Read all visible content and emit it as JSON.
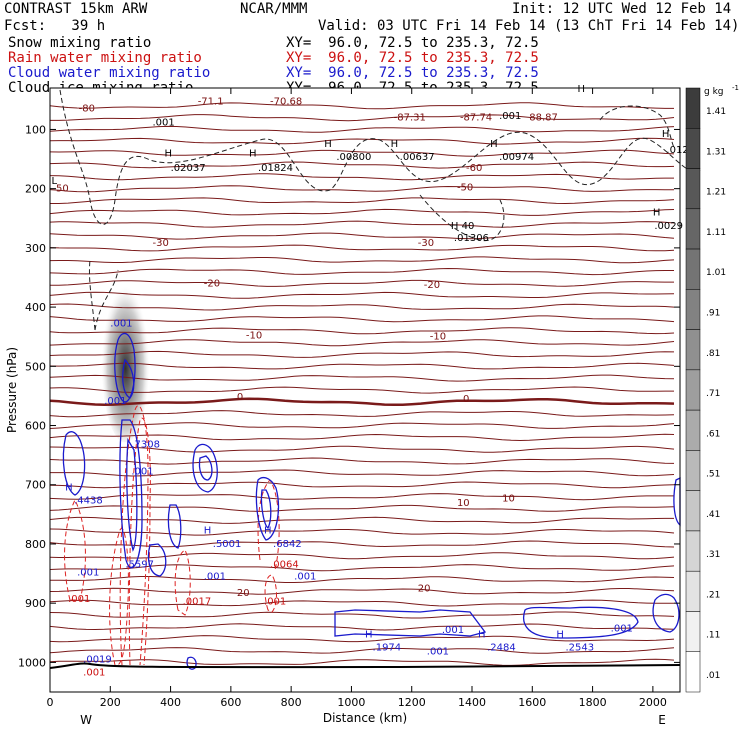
{
  "header": {
    "model": "CONTRAST 15km ARW",
    "org": "NCAR/MMM",
    "init": "Init: 12 UTC Wed 12 Feb 14",
    "fcst": "Fcst:   39 h",
    "valid": "Valid: 03 UTC Fri 14 Feb 14 (13 ChT Fri 14 Feb 14)"
  },
  "legend": [
    {
      "name": "Snow mixing ratio",
      "xy": "XY=  96.0, 72.5 to 235.3, 72.5",
      "color": "#000000"
    },
    {
      "name": "Rain water mixing ratio",
      "xy": "XY=  96.0, 72.5 to 235.3, 72.5",
      "color": "#cc1111"
    },
    {
      "name": "Cloud water mixing ratio",
      "xy": "XY=  96.0, 72.5 to 235.3, 72.5",
      "color": "#1a1acc"
    },
    {
      "name": "Cloud ice mixing ratio",
      "xy": "XY=  96.0, 72.5 to 235.3, 72.5",
      "color": "#000000"
    }
  ],
  "chart_data": {
    "type": "heatmap",
    "xlabel": "Distance (km)",
    "ylabel": "Pressure (hPa)",
    "xlim": [
      0,
      2090
    ],
    "ylim": [
      1050,
      30
    ],
    "x_ticks": [
      0,
      200,
      400,
      600,
      800,
      1000,
      1200,
      1400,
      1600,
      1800,
      2000
    ],
    "y_ticks": [
      100,
      200,
      300,
      400,
      500,
      600,
      700,
      800,
      900,
      1000
    ],
    "x_end_labels": {
      "left": "W",
      "right": "E"
    },
    "colorbar": {
      "unit": "g kg",
      "unit_exp": "-1",
      "labels": [
        "1.41",
        "1.31",
        "1.21",
        "1.11",
        "1.01",
        ".91",
        ".81",
        ".71",
        ".61",
        ".51",
        ".41",
        ".31",
        ".21",
        ".11",
        ".01"
      ]
    },
    "temperature_contours": [
      {
        "value": "-80",
        "p": 60
      },
      {
        "value": "-70",
        "p": 72
      },
      {
        "value": "-60",
        "p": 135
      },
      {
        "value": "-50",
        "p": 180
      },
      {
        "value": "-40",
        "p": 225
      },
      {
        "value": "-30",
        "p": 295
      },
      {
        "value": "-20",
        "p": 360
      },
      {
        "value": "-10",
        "p": 452
      },
      {
        "value": "0",
        "p": 555
      },
      {
        "value": "10",
        "p": 730
      },
      {
        "value": "20",
        "p": 880
      }
    ],
    "contour_labels": [
      {
        "text": "-80",
        "x": 95,
        "p": 70,
        "color": "#7a1010"
      },
      {
        "text": "-71.1",
        "x": 490,
        "p": 58,
        "color": "#7a1010"
      },
      {
        "text": "-70.68",
        "x": 730,
        "p": 58,
        "color": "#7a1010"
      },
      {
        "text": "-87.31",
        "x": 1140,
        "p": 85,
        "color": "#7a1010"
      },
      {
        "text": "-87.74",
        "x": 1360,
        "p": 85,
        "color": "#7a1010"
      },
      {
        "text": "88.87",
        "x": 1590,
        "p": 85,
        "color": "#7a1010"
      },
      {
        "text": ".001",
        "x": 340,
        "p": 93,
        "color": "#000000"
      },
      {
        "text": ".001",
        "x": 1490,
        "p": 82,
        "color": "#000000"
      },
      {
        "text": "H",
        "x": 380,
        "p": 146,
        "color": "#000000"
      },
      {
        "text": ".02037",
        "x": 400,
        "p": 170,
        "color": "#000000"
      },
      {
        "text": "H",
        "x": 660,
        "p": 146,
        "color": "#000000"
      },
      {
        "text": ".01824",
        "x": 690,
        "p": 170,
        "color": "#000000"
      },
      {
        "text": "H",
        "x": 910,
        "p": 130,
        "color": "#000000"
      },
      {
        "text": ".00800",
        "x": 950,
        "p": 152,
        "color": "#000000"
      },
      {
        "text": "H",
        "x": 1130,
        "p": 130,
        "color": "#000000"
      },
      {
        "text": ".00637",
        "x": 1160,
        "p": 152,
        "color": "#000000"
      },
      {
        "text": "H",
        "x": 1460,
        "p": 130,
        "color": "#000000"
      },
      {
        "text": ".00974",
        "x": 1490,
        "p": 152,
        "color": "#000000"
      },
      {
        "text": "H",
        "x": 2030,
        "p": 113,
        "color": "#000000"
      },
      {
        "text": ".012",
        "x": 2045,
        "p": 140,
        "color": "#000000"
      },
      {
        "text": "H",
        "x": 2000,
        "p": 245,
        "color": "#000000"
      },
      {
        "text": ".0029",
        "x": 2005,
        "p": 268,
        "color": "#000000"
      },
      {
        "text": "H 40",
        "x": 1330,
        "p": 268,
        "color": "#000000"
      },
      {
        "text": ".01306",
        "x": 1340,
        "p": 288,
        "color": "#000000"
      },
      {
        "text": "L",
        "x": 5,
        "p": 192,
        "color": "#000000"
      },
      {
        "text": "50",
        "x": 20,
        "p": 205,
        "color": "#7a1010"
      },
      {
        "text": "H",
        "x": 1750,
        "p": 37,
        "color": "#000000"
      },
      {
        "text": "-60",
        "x": 1380,
        "p": 170,
        "color": "#7a1010"
      },
      {
        "text": "-50",
        "x": 1350,
        "p": 203,
        "color": "#7a1010"
      },
      {
        "text": "-30",
        "x": 340,
        "p": 297,
        "color": "#7a1010"
      },
      {
        "text": "-30",
        "x": 1220,
        "p": 297,
        "color": "#7a1010"
      },
      {
        "text": "-20",
        "x": 510,
        "p": 365,
        "color": "#7a1010"
      },
      {
        "text": "-20",
        "x": 1240,
        "p": 368,
        "color": "#7a1010"
      },
      {
        "text": "-10",
        "x": 650,
        "p": 453,
        "color": "#7a1010"
      },
      {
        "text": "-10",
        "x": 1260,
        "p": 455,
        "color": "#7a1010"
      },
      {
        "text": "0",
        "x": 620,
        "p": 557,
        "color": "#7a1010"
      },
      {
        "text": "0",
        "x": 1370,
        "p": 560,
        "color": "#7a1010"
      },
      {
        "text": "10",
        "x": 1350,
        "p": 736,
        "color": "#7a1010"
      },
      {
        "text": "10",
        "x": 1500,
        "p": 728,
        "color": "#7a1010"
      },
      {
        "text": "20",
        "x": 1220,
        "p": 880,
        "color": "#7a1010"
      },
      {
        "text": "20",
        "x": 620,
        "p": 888,
        "color": "#7a1010"
      },
      {
        "text": ".001",
        "x": 200,
        "p": 433,
        "color": "#1a1acc"
      },
      {
        "text": ".001",
        "x": 180,
        "p": 564,
        "color": "#1a1acc"
      },
      {
        "text": ".7308",
        "x": 270,
        "p": 637,
        "color": "#1a1acc"
      },
      {
        "text": ".001",
        "x": 270,
        "p": 683,
        "color": "#1a1acc"
      },
      {
        "text": "H",
        "x": 50,
        "p": 710,
        "color": "#1a1acc"
      },
      {
        "text": ".4438",
        "x": 80,
        "p": 732,
        "color": "#1a1acc"
      },
      {
        "text": "H",
        "x": 510,
        "p": 782,
        "color": "#1a1acc"
      },
      {
        "text": ".5001",
        "x": 540,
        "p": 805,
        "color": "#1a1acc"
      },
      {
        "text": "H",
        "x": 710,
        "p": 782,
        "color": "#1a1acc"
      },
      {
        "text": ".6842",
        "x": 740,
        "p": 805,
        "color": "#1a1acc"
      },
      {
        "text": ".001",
        "x": 510,
        "p": 860,
        "color": "#1a1acc"
      },
      {
        "text": ".001",
        "x": 810,
        "p": 860,
        "color": "#1a1acc"
      },
      {
        "text": ".5597",
        "x": 250,
        "p": 840,
        "color": "#1a1acc"
      },
      {
        "text": ".001",
        "x": 90,
        "p": 853,
        "color": "#1a1acc"
      },
      {
        "text": ".0064",
        "x": 730,
        "p": 840,
        "color": "#cc1111"
      },
      {
        "text": ".001",
        "x": 60,
        "p": 898,
        "color": "#cc1111"
      },
      {
        "text": ".0017",
        "x": 440,
        "p": 902,
        "color": "#cc1111"
      },
      {
        "text": ".001",
        "x": 710,
        "p": 902,
        "color": "#cc1111"
      },
      {
        "text": "H",
        "x": 1045,
        "p": 958,
        "color": "#1a1acc"
      },
      {
        "text": ".1974",
        "x": 1070,
        "p": 980,
        "color": "#1a1acc"
      },
      {
        "text": ".001",
        "x": 1300,
        "p": 950,
        "color": "#1a1acc"
      },
      {
        "text": ".001",
        "x": 1250,
        "p": 987,
        "color": "#1a1acc"
      },
      {
        "text": "H",
        "x": 1420,
        "p": 958,
        "color": "#1a1acc"
      },
      {
        "text": ".2484",
        "x": 1450,
        "p": 980,
        "color": "#1a1acc"
      },
      {
        "text": "H",
        "x": 1680,
        "p": 958,
        "color": "#1a1acc"
      },
      {
        "text": ".2543",
        "x": 1710,
        "p": 980,
        "color": "#1a1acc"
      },
      {
        "text": ".001",
        "x": 1860,
        "p": 948,
        "color": "#1a1acc"
      },
      {
        "text": ".0019",
        "x": 110,
        "p": 1000,
        "color": "#1a1acc"
      },
      {
        "text": ".001",
        "x": 110,
        "p": 1022,
        "color": "#cc1111"
      }
    ]
  }
}
